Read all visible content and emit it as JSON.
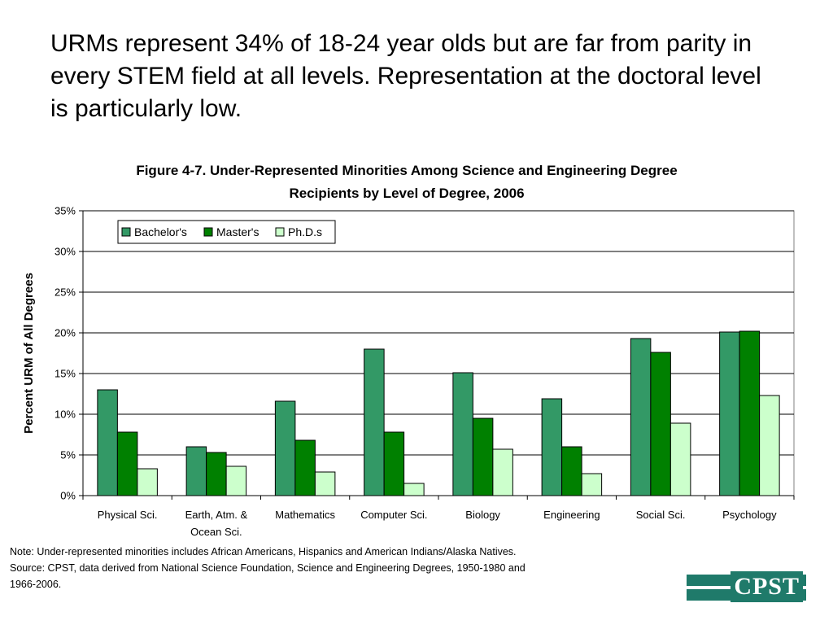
{
  "headline": "URMs represent 34% of 18-24 year olds but are far from parity in every STEM field at all levels.  Representation at the doctoral level is particularly low.",
  "chart_data": {
    "type": "bar",
    "title_line1": "Figure 4-7. Under-Represented Minorities Among Science and Engineering Degree",
    "title_line2": "Recipients by Level of Degree, 2006",
    "ylabel": "Percent URM of All Degrees",
    "xlabel": "",
    "categories": [
      [
        "Physical Sci."
      ],
      [
        "Earth, Atm. &",
        "Ocean Sci."
      ],
      [
        "Mathematics"
      ],
      [
        "Computer Sci."
      ],
      [
        "Biology"
      ],
      [
        "Engineering"
      ],
      [
        "Social Sci."
      ],
      [
        "Psychology"
      ]
    ],
    "series": [
      {
        "name": "Bachelor's",
        "color": "#339966",
        "values": [
          13.0,
          6.0,
          11.6,
          18.0,
          15.1,
          11.9,
          19.3,
          20.1
        ]
      },
      {
        "name": "Master's",
        "color": "#008000",
        "values": [
          7.8,
          5.3,
          6.8,
          7.8,
          9.5,
          6.0,
          17.6,
          20.2
        ]
      },
      {
        "name": "Ph.D.s",
        "color": "#ccffcc",
        "values": [
          3.3,
          3.6,
          2.9,
          1.5,
          5.7,
          2.7,
          8.9,
          12.3
        ]
      }
    ],
    "ylim": [
      0,
      35
    ],
    "yticks": [
      "0%",
      "5%",
      "10%",
      "15%",
      "20%",
      "25%",
      "30%",
      "35%"
    ],
    "grid": true,
    "legend_position": "top-left"
  },
  "note": {
    "line1": "Note: Under-represented minorities includes African Americans, Hispanics and American Indians/Alaska Natives.",
    "line2": "Source: CPST, data derived from National Science Foundation, Science and Engineering Degrees, 1950-1980 and",
    "line3": "1966-2006."
  },
  "logo": {
    "text": "CPST",
    "color": "#1f7a6a"
  }
}
